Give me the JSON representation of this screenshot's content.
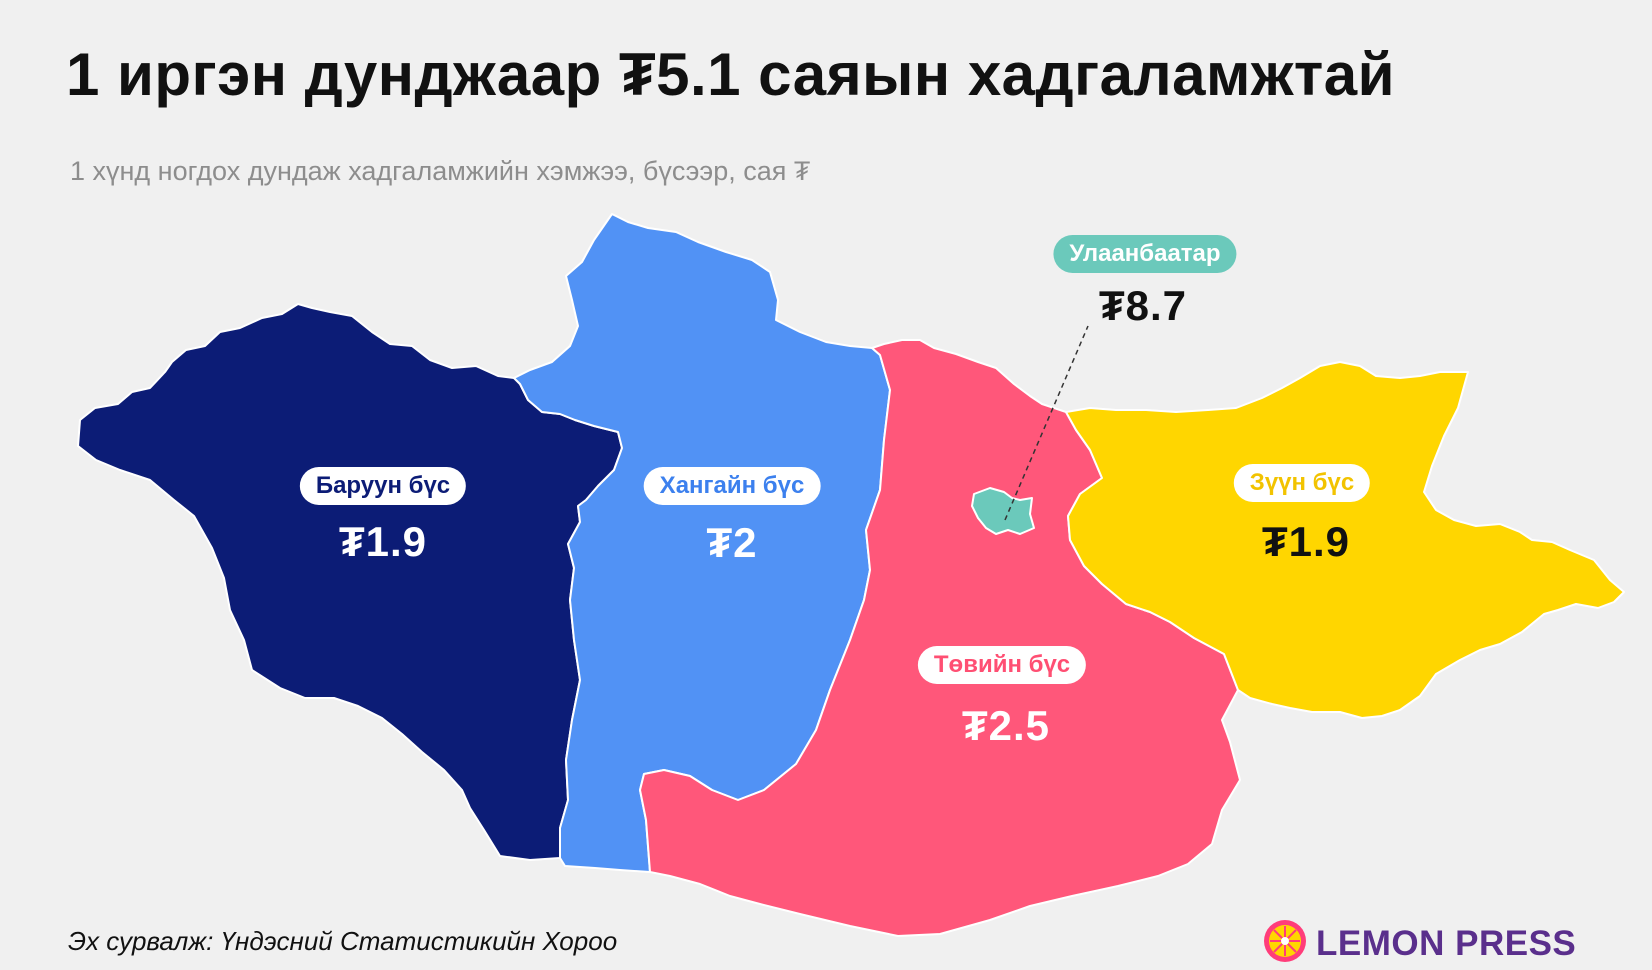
{
  "title": "1 иргэн дунджаар ₮5.1 саяын хадгаламжтай",
  "subtitle": "1 хүнд ногдох дундаж хадгаламжийн хэмжээ, бүсээр, сая ₮",
  "regions": {
    "west": {
      "name": "Баруун бүс",
      "value": "₮1.9",
      "color": "#0c1c76"
    },
    "khangai": {
      "name": "Хангайн бүс",
      "value": "₮2",
      "color": "#5192f5"
    },
    "central": {
      "name": "Төвийн бүс",
      "value": "₮2.5",
      "color": "#ff577a"
    },
    "east": {
      "name": "Зүүн бүс",
      "value": "₮1.9",
      "color": "#ffd600"
    },
    "ub": {
      "name": "Улаанбаатар",
      "value": "₮8.7",
      "color": "#6bc9bb"
    }
  },
  "source": "Эх сурвалж: Үндэсний Статистикийн Хороо",
  "brand": {
    "name": "LEMON PRESS",
    "color": "#5a2f8c",
    "icon": "lemon-icon"
  }
}
